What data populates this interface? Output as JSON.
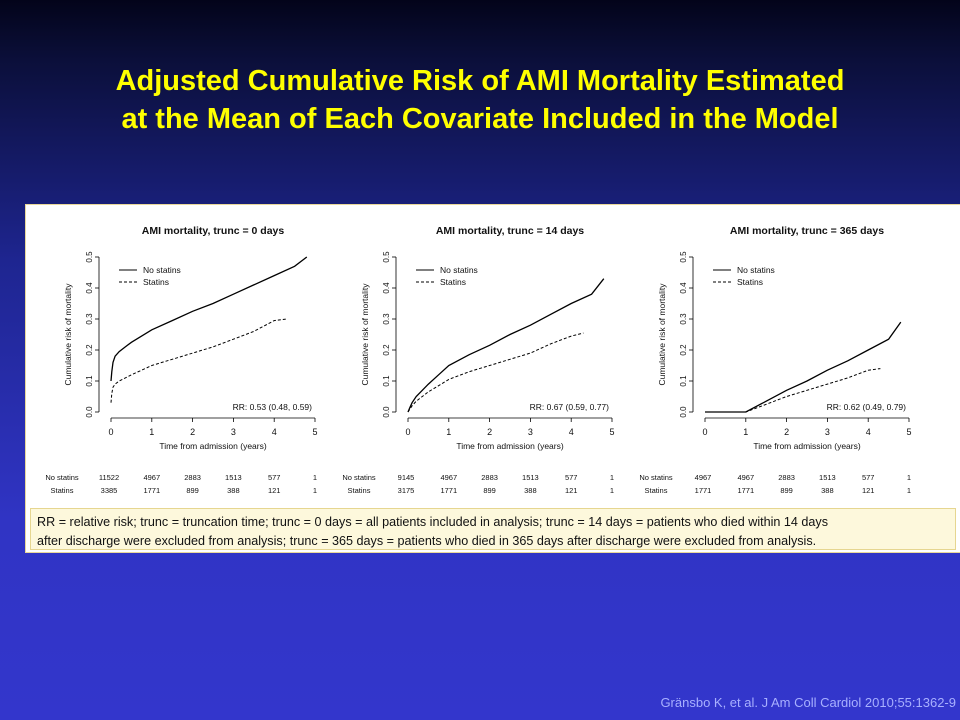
{
  "slide": {
    "title_line1": "Adjusted Cumulative Risk of AMI Mortality Estimated",
    "title_line2": "at the Mean of Each Covariate Included in the Model",
    "footnote_line1": "RR = relative risk; trunc = truncation time; trunc = 0 days = all patients included in analysis; trunc = 14 days = patients who died within 14 days",
    "footnote_line2": "after discharge were excluded from analysis; trunc = 365 days = patients who died in 365 days after discharge were excluded from analysis.",
    "citation": "Gränsbo K, et al. J Am Coll Cardiol 2010;55:1362-9"
  },
  "colors": {
    "title": "#ffff00",
    "citation": "#a8b0ff",
    "footnote_bg": "#fdf8dc",
    "panel_border": "#e9d89a"
  },
  "chart_data": [
    {
      "type": "line",
      "title": "AMI mortality, trunc = 0 days",
      "xlabel": "Time from admission (years)",
      "ylabel": "Cumulative risk of mortality",
      "xlim": [
        0,
        5
      ],
      "ylim": [
        0,
        0.5
      ],
      "xticks": [
        0,
        1,
        2,
        3,
        4,
        5
      ],
      "yticks": [
        0.0,
        0.1,
        0.2,
        0.3,
        0.4,
        0.5
      ],
      "legend_position": "top-left",
      "annotation": "RR: 0.53 (0.48, 0.59)",
      "series": [
        {
          "name": "No statins",
          "style": "solid",
          "x": [
            0,
            0.02,
            0.05,
            0.1,
            0.2,
            0.35,
            0.5,
            0.75,
            1,
            1.5,
            2,
            2.5,
            3,
            3.5,
            4,
            4.5,
            4.8
          ],
          "y": [
            0.1,
            0.13,
            0.16,
            0.18,
            0.195,
            0.21,
            0.225,
            0.245,
            0.265,
            0.295,
            0.325,
            0.35,
            0.38,
            0.41,
            0.44,
            0.47,
            0.5
          ]
        },
        {
          "name": "Statins",
          "style": "dashed",
          "x": [
            0,
            0.02,
            0.05,
            0.1,
            0.2,
            0.35,
            0.5,
            0.75,
            1,
            1.5,
            2,
            2.5,
            3,
            3.5,
            4,
            4.3
          ],
          "y": [
            0.03,
            0.06,
            0.08,
            0.09,
            0.1,
            0.11,
            0.12,
            0.135,
            0.15,
            0.17,
            0.19,
            0.21,
            0.235,
            0.26,
            0.295,
            0.3
          ]
        }
      ],
      "at_risk": {
        "labels": [
          "No statins",
          "Statins"
        ],
        "rows": [
          [
            "11522",
            "4967",
            "2883",
            "1513",
            "577",
            "1"
          ],
          [
            "3385",
            "1771",
            "899",
            "388",
            "121",
            "1"
          ]
        ]
      }
    },
    {
      "type": "line",
      "title": "AMI mortality, trunc = 14 days",
      "xlabel": "Time from admission (years)",
      "ylabel": "Cumulative risk of mortality",
      "xlim": [
        0,
        5
      ],
      "ylim": [
        0,
        0.5
      ],
      "xticks": [
        0,
        1,
        2,
        3,
        4,
        5
      ],
      "yticks": [
        0.0,
        0.1,
        0.2,
        0.3,
        0.4,
        0.5
      ],
      "legend_position": "top-left",
      "annotation": "RR: 0.67 (0.59, 0.77)",
      "series": [
        {
          "name": "No statins",
          "style": "solid",
          "x": [
            0,
            0.05,
            0.1,
            0.2,
            0.35,
            0.5,
            0.75,
            1,
            1.5,
            2,
            2.5,
            3,
            3.5,
            4,
            4.5,
            4.8
          ],
          "y": [
            0,
            0.015,
            0.03,
            0.05,
            0.07,
            0.09,
            0.12,
            0.15,
            0.185,
            0.215,
            0.25,
            0.28,
            0.315,
            0.35,
            0.38,
            0.43
          ]
        },
        {
          "name": "Statins",
          "style": "dashed",
          "x": [
            0,
            0.05,
            0.1,
            0.2,
            0.35,
            0.5,
            0.75,
            1,
            1.5,
            2,
            2.5,
            3,
            3.5,
            4,
            4.3
          ],
          "y": [
            0,
            0.01,
            0.02,
            0.035,
            0.05,
            0.065,
            0.085,
            0.105,
            0.13,
            0.15,
            0.17,
            0.19,
            0.22,
            0.245,
            0.255
          ]
        }
      ],
      "at_risk": {
        "labels": [
          "No statins",
          "Statins"
        ],
        "rows": [
          [
            "9145",
            "4967",
            "2883",
            "1513",
            "577",
            "1"
          ],
          [
            "3175",
            "1771",
            "899",
            "388",
            "121",
            "1"
          ]
        ]
      }
    },
    {
      "type": "line",
      "title": "AMI mortality, trunc = 365 days",
      "xlabel": "Time from admission (years)",
      "ylabel": "Cumulative risk of mortality",
      "xlim": [
        0,
        5
      ],
      "ylim": [
        0,
        0.5
      ],
      "xticks": [
        0,
        1,
        2,
        3,
        4,
        5
      ],
      "yticks": [
        0.0,
        0.1,
        0.2,
        0.3,
        0.4,
        0.5
      ],
      "legend_position": "top-left",
      "annotation": "RR: 0.62 (0.49, 0.79)",
      "series": [
        {
          "name": "No statins",
          "style": "solid",
          "x": [
            0,
            1,
            1.5,
            2,
            2.5,
            3,
            3.5,
            4,
            4.5,
            4.8
          ],
          "y": [
            0,
            0,
            0.035,
            0.07,
            0.1,
            0.135,
            0.165,
            0.2,
            0.235,
            0.29
          ]
        },
        {
          "name": "Statins",
          "style": "dashed",
          "x": [
            0,
            1,
            1.5,
            2,
            2.5,
            3,
            3.5,
            4,
            4.3
          ],
          "y": [
            0,
            0,
            0.025,
            0.05,
            0.07,
            0.09,
            0.11,
            0.135,
            0.14
          ]
        }
      ],
      "at_risk": {
        "labels": [
          "No statins",
          "Statins"
        ],
        "rows": [
          [
            "4967",
            "4967",
            "2883",
            "1513",
            "577",
            "1"
          ],
          [
            "1771",
            "1771",
            "899",
            "388",
            "121",
            "1"
          ]
        ]
      }
    }
  ]
}
